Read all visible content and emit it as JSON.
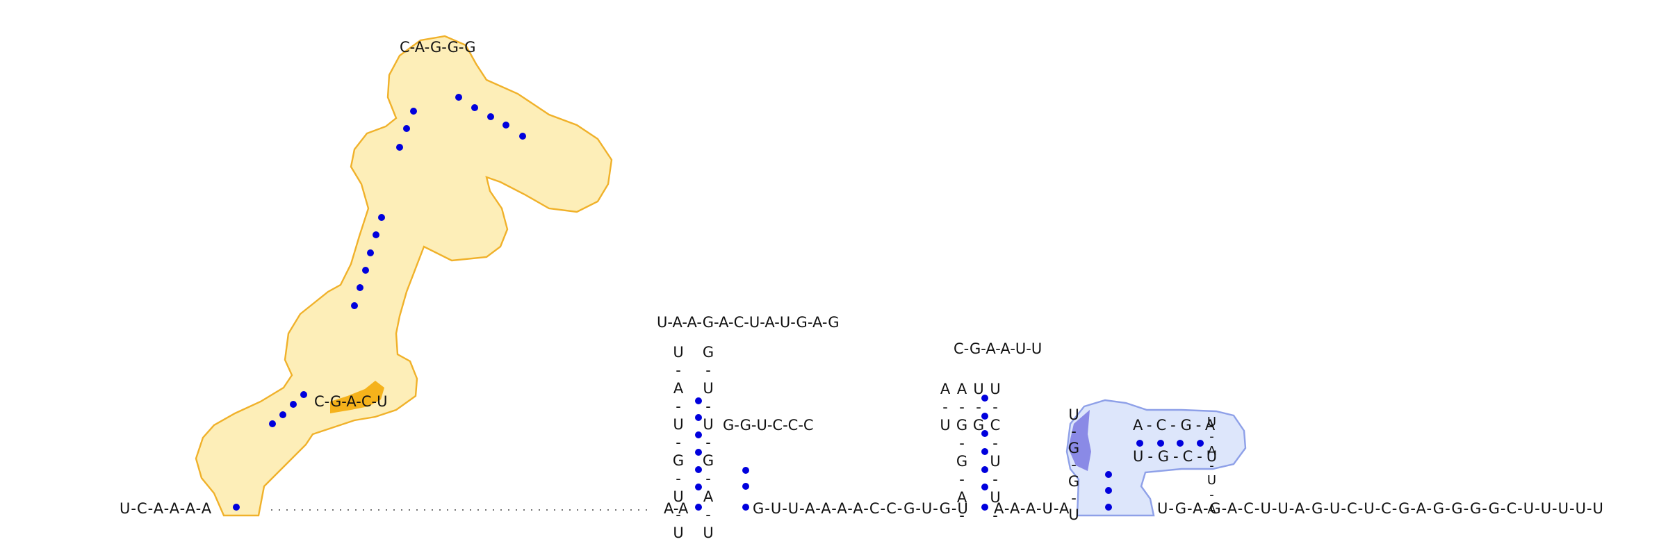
{
  "colors": {
    "pair_dot": "#0000dd",
    "highlight_orange_fill": "#fdeeb8",
    "highlight_orange_stroke": "#f0b12a",
    "highlight_orange_strong": "#f5b21b",
    "highlight_blue_fill": "#dde6fb",
    "highlight_blue_stroke": "#8ea0e8",
    "highlight_blue_strong": "#8a8ae6"
  },
  "sequence_5prime_tail": "U-C-A-A-A-A",
  "sequence_3prime_tail": "U-G-A-G-A-C-U-U-A-G-U-C-U-C-G-A-G-G-G-G-C-U-U-U-U-U",
  "linker_1": "A-A",
  "linker_2": "G-U-U-A-A-A-A-C-C-G-U-G-U",
  "linker_3": "A-A-A-U-A",
  "structure_1": {
    "highlight": "orange",
    "strong_highlight_bases": "C-G-A-C-U",
    "pairs": 18,
    "hairpin_loop": "C-A-G-G-G"
  },
  "structure_2": {
    "stem_left": "U-A-U-G-U-U",
    "stem_right": "G-U-U-G-A-U",
    "loop": "U-A-A-G-A-C-U-A-U-G-A-G",
    "small_hairpin_loop": "G-G-U-C-C-C"
  },
  "structure_3": {
    "stem_left": "A-G-G-A-A-U",
    "stem_right": "U-C-U-U-U-G",
    "loop": "C-G-A-A-U-U"
  },
  "structure_4": {
    "highlight": "blue",
    "strong_highlight_bases": "U-G-G-U",
    "inner_stem_top": "A-C-G-A",
    "inner_stem_bottom": "U-G-C-U",
    "inner_loop": "U-A-U-A"
  }
}
